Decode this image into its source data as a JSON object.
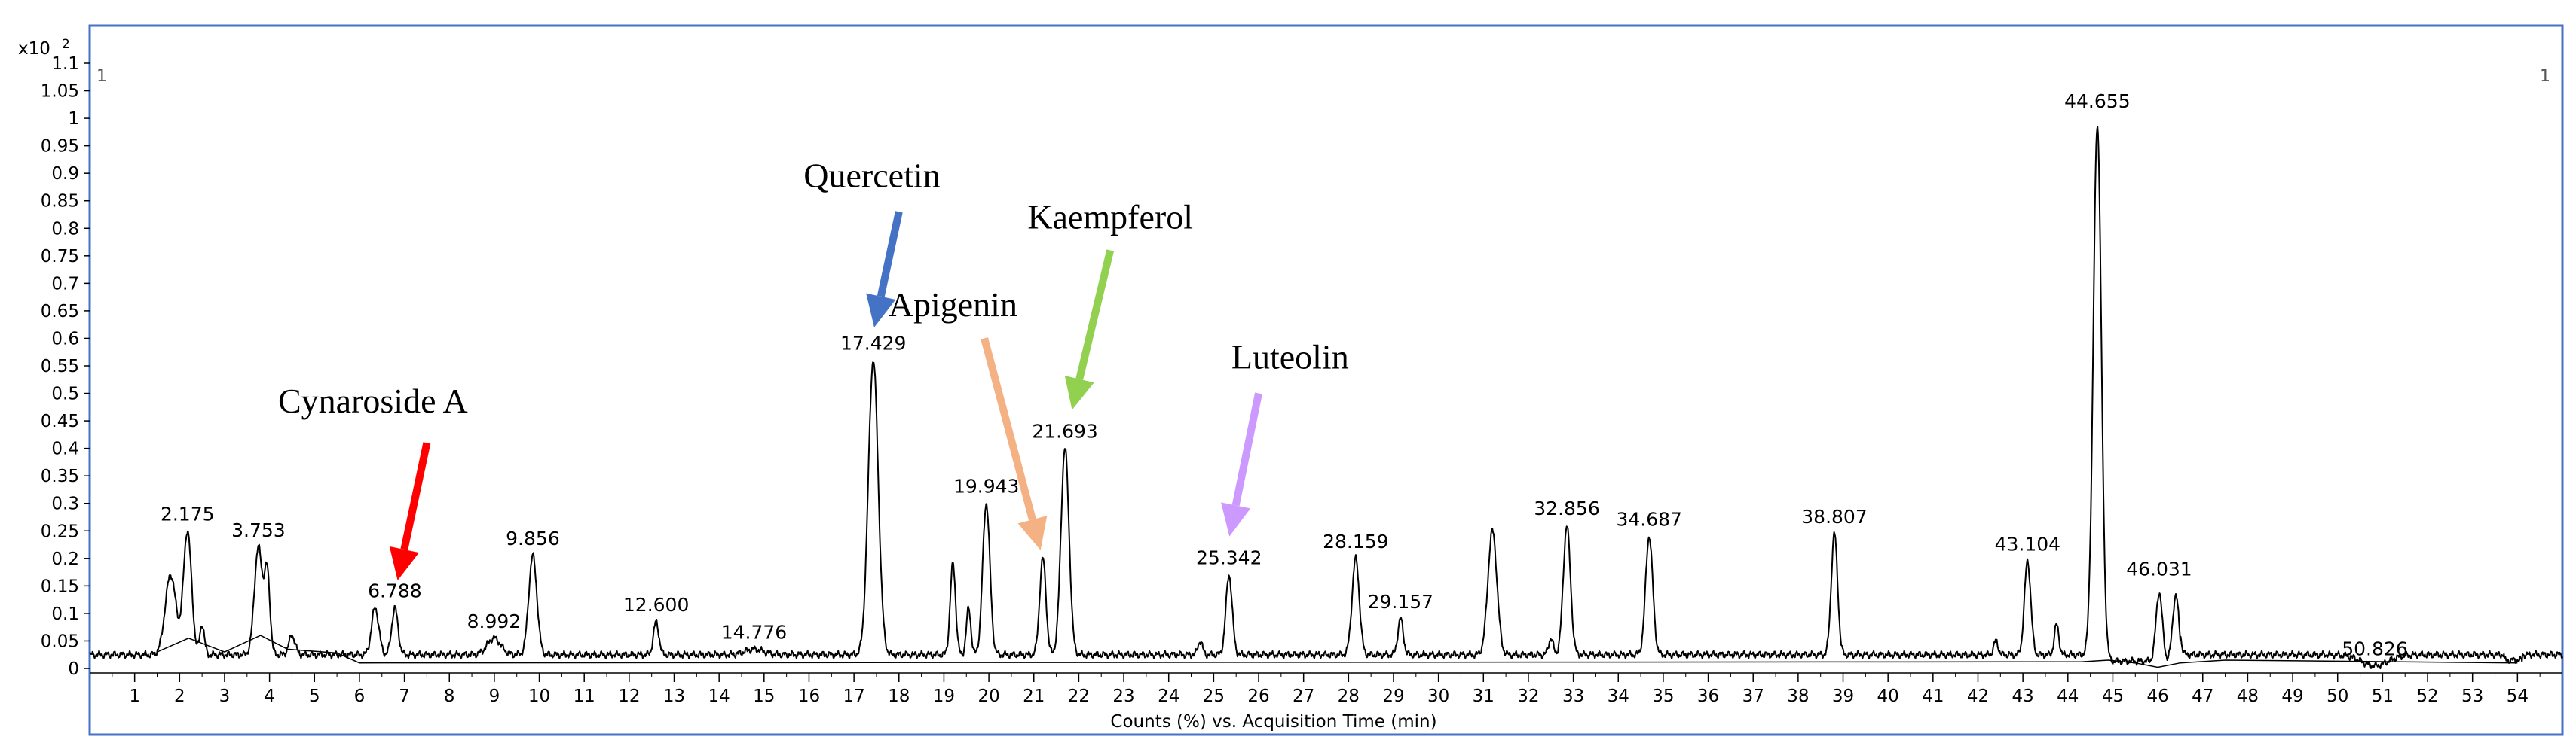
{
  "chart_data": {
    "type": "line",
    "xlabel": "Counts (%) vs. Acquisition Time (min)",
    "y_multiplier": "x10",
    "y_exponent": "2",
    "corner_left": "1",
    "corner_right": "1",
    "xlim": [
      0,
      55
    ],
    "ylim": [
      0,
      1.1
    ],
    "x_ticks": [
      1,
      2,
      3,
      4,
      5,
      6,
      7,
      8,
      9,
      10,
      11,
      12,
      13,
      14,
      15,
      16,
      17,
      18,
      19,
      20,
      21,
      22,
      23,
      24,
      25,
      26,
      27,
      28,
      29,
      30,
      31,
      32,
      33,
      34,
      35,
      36,
      37,
      38,
      39,
      40,
      41,
      42,
      43,
      44,
      45,
      46,
      47,
      48,
      49,
      50,
      51,
      52,
      53,
      54
    ],
    "y_ticks": [
      "0",
      "0.05",
      "0.1",
      "0.15",
      "0.2",
      "0.25",
      "0.3",
      "0.35",
      "0.4",
      "0.45",
      "0.5",
      "0.55",
      "0.6",
      "0.65",
      "0.7",
      "0.75",
      "0.8",
      "0.85",
      "0.9",
      "0.95",
      "1",
      "1.05",
      "1.1"
    ],
    "baseline": 0.025,
    "peaks": [
      {
        "x": 1.8,
        "y": 0.17,
        "w": 0.12,
        "label": ""
      },
      {
        "x": 2.175,
        "y": 0.25,
        "w": 0.09,
        "label": "2.175"
      },
      {
        "x": 2.5,
        "y": 0.08,
        "w": 0.05,
        "label": ""
      },
      {
        "x": 3.753,
        "y": 0.22,
        "w": 0.09,
        "label": "3.753"
      },
      {
        "x": 3.95,
        "y": 0.17,
        "w": 0.06,
        "label": ""
      },
      {
        "x": 4.5,
        "y": 0.06,
        "w": 0.07,
        "label": ""
      },
      {
        "x": 6.35,
        "y": 0.11,
        "w": 0.08,
        "label": ""
      },
      {
        "x": 6.788,
        "y": 0.11,
        "w": 0.07,
        "label": "6.788"
      },
      {
        "x": 8.992,
        "y": 0.055,
        "w": 0.15,
        "label": "8.992"
      },
      {
        "x": 9.856,
        "y": 0.205,
        "w": 0.09,
        "label": "9.856"
      },
      {
        "x": 12.6,
        "y": 0.085,
        "w": 0.06,
        "label": "12.600"
      },
      {
        "x": 14.776,
        "y": 0.035,
        "w": 0.2,
        "label": "14.776"
      },
      {
        "x": 17.429,
        "y": 0.56,
        "w": 0.11,
        "label": "17.429"
      },
      {
        "x": 19.2,
        "y": 0.19,
        "w": 0.06,
        "label": ""
      },
      {
        "x": 19.55,
        "y": 0.11,
        "w": 0.05,
        "label": ""
      },
      {
        "x": 19.943,
        "y": 0.3,
        "w": 0.08,
        "label": "19.943"
      },
      {
        "x": 21.2,
        "y": 0.2,
        "w": 0.07,
        "label": ""
      },
      {
        "x": 21.693,
        "y": 0.4,
        "w": 0.09,
        "label": "21.693"
      },
      {
        "x": 24.7,
        "y": 0.05,
        "w": 0.05,
        "label": ""
      },
      {
        "x": 25.342,
        "y": 0.17,
        "w": 0.07,
        "label": "25.342"
      },
      {
        "x": 28.159,
        "y": 0.2,
        "w": 0.08,
        "label": "28.159"
      },
      {
        "x": 29.157,
        "y": 0.09,
        "w": 0.06,
        "label": "29.157"
      },
      {
        "x": 31.2,
        "y": 0.25,
        "w": 0.1,
        "label": ""
      },
      {
        "x": 32.5,
        "y": 0.055,
        "w": 0.05,
        "label": ""
      },
      {
        "x": 32.856,
        "y": 0.26,
        "w": 0.08,
        "label": "32.856"
      },
      {
        "x": 34.687,
        "y": 0.24,
        "w": 0.08,
        "label": "34.687"
      },
      {
        "x": 38.807,
        "y": 0.245,
        "w": 0.07,
        "label": "38.807"
      },
      {
        "x": 42.4,
        "y": 0.05,
        "w": 0.05,
        "label": ""
      },
      {
        "x": 43.104,
        "y": 0.195,
        "w": 0.07,
        "label": "43.104"
      },
      {
        "x": 43.75,
        "y": 0.08,
        "w": 0.05,
        "label": ""
      },
      {
        "x": 44.655,
        "y": 1.0,
        "w": 0.09,
        "label": "44.655"
      },
      {
        "x": 46.031,
        "y": 0.15,
        "w": 0.07,
        "label": "46.031"
      },
      {
        "x": 46.4,
        "y": 0.145,
        "w": 0.07,
        "label": ""
      },
      {
        "x": 50.826,
        "y": 0.005,
        "w": 0.3,
        "label": "50.826"
      }
    ],
    "secondary_trace": [
      [
        1.5,
        0.03
      ],
      [
        2.2,
        0.055
      ],
      [
        3.0,
        0.03
      ],
      [
        3.8,
        0.06
      ],
      [
        4.4,
        0.035
      ],
      [
        5.5,
        0.028
      ],
      [
        6.0,
        0.01
      ],
      [
        44.3,
        0.012
      ],
      [
        44.9,
        0.015
      ],
      [
        45.5,
        0.01
      ],
      [
        46.0,
        0.002
      ],
      [
        46.5,
        0.01
      ],
      [
        47.5,
        0.015
      ],
      [
        54.0,
        0.01
      ]
    ],
    "annotations": [
      {
        "text": "Cynaroside A",
        "color": "#ff0000",
        "label_x": 6.3,
        "label_y": 0.465,
        "tail": [
          7.5,
          0.41
        ],
        "head": [
          6.85,
          0.16
        ]
      },
      {
        "text": "Quercetin",
        "color": "#4472c4",
        "label_x": 17.4,
        "label_y": 0.875,
        "tail": [
          18.0,
          0.83
        ],
        "head": [
          17.45,
          0.62
        ]
      },
      {
        "text": "Apigenin",
        "color": "#f4b183",
        "label_x": 19.2,
        "label_y": 0.64,
        "tail": [
          19.9,
          0.6
        ],
        "head": [
          21.15,
          0.215
        ]
      },
      {
        "text": "Kaempferol",
        "color": "#92d050",
        "label_x": 22.7,
        "label_y": 0.8,
        "tail": [
          22.7,
          0.76
        ],
        "head": [
          21.85,
          0.47
        ]
      },
      {
        "text": "Luteolin",
        "color": "#cc99ff",
        "label_x": 26.7,
        "label_y": 0.545,
        "tail": [
          26.0,
          0.5
        ],
        "head": [
          25.35,
          0.24
        ]
      }
    ]
  }
}
